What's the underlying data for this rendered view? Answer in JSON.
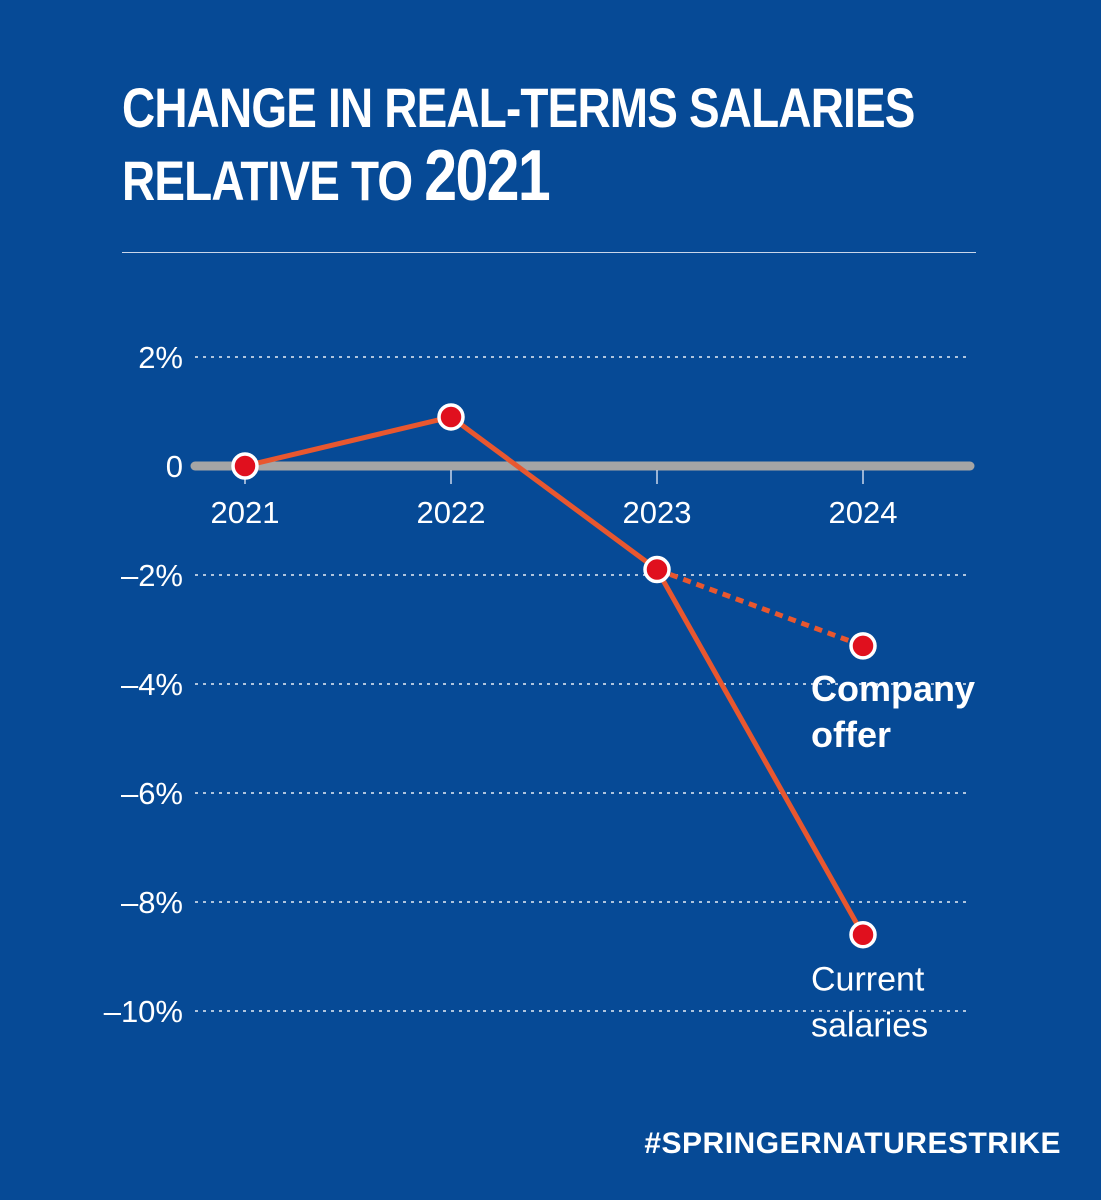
{
  "title": {
    "line1": "CHANGE IN REAL-TERMS SALARIES",
    "line2_prefix": "RELATIVE TO ",
    "line2_year": "2021"
  },
  "hashtag": "#SPRINGERNATURESTRIKE",
  "colors": {
    "background": "#064a96",
    "series": "#e8572f",
    "marker": "#e0101e",
    "zero_line": "#a5a5a5",
    "text": "#ffffff"
  },
  "chart_data": {
    "type": "line",
    "title": "CHANGE IN REAL-TERMS SALARIES RELATIVE TO 2021",
    "categories": [
      "2021",
      "2022",
      "2023",
      "2024"
    ],
    "ylim": [
      -10,
      2
    ],
    "yticks": [
      2,
      0,
      -2,
      -4,
      -6,
      -8,
      -10
    ],
    "ytick_labels": [
      "2%",
      "0",
      "–2%",
      "–4%",
      "–6%",
      "–8%",
      "–10%"
    ],
    "grid": true,
    "series": [
      {
        "name": "Current salaries",
        "label_lines": [
          "Current",
          "salaries"
        ],
        "style": "solid",
        "values": [
          0,
          0.9,
          -1.9,
          -8.6
        ]
      },
      {
        "name": "Company offer",
        "label_lines": [
          "Company",
          "offer"
        ],
        "style": "dashed",
        "values": [
          null,
          null,
          -1.9,
          -3.3
        ]
      }
    ]
  }
}
